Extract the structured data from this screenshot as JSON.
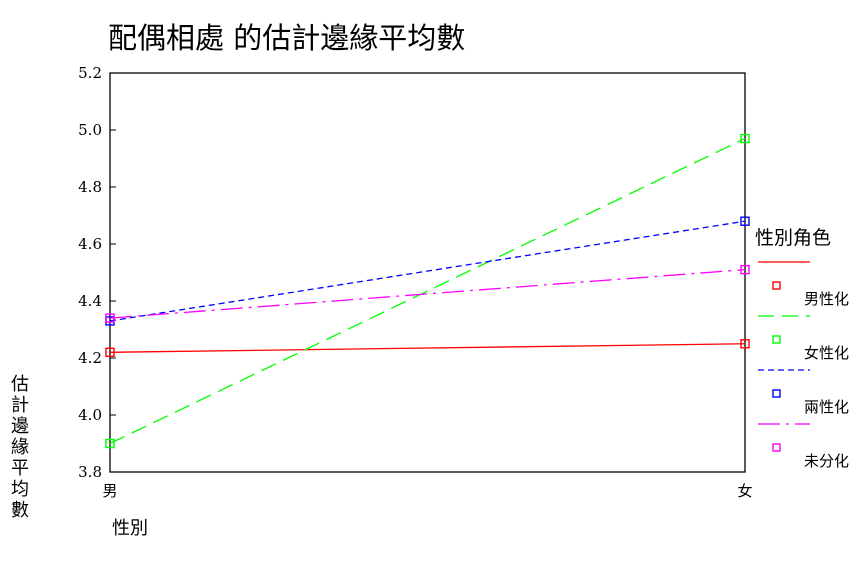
{
  "chart_data": {
    "type": "line",
    "title": "配偶相處 的估計邊緣平均數",
    "xlabel": "性別",
    "ylabel": "估計邊緣平均數",
    "categories": [
      "男",
      "女"
    ],
    "ylim": [
      3.8,
      5.2
    ],
    "yticks": [
      "3.8",
      "4.0",
      "4.2",
      "4.4",
      "4.6",
      "4.8",
      "5.0",
      "5.2"
    ],
    "grid": false,
    "legend_title": "性別角色",
    "legend_position": "right",
    "series": [
      {
        "name": "男性化",
        "values": [
          4.22,
          4.25
        ],
        "color": "#ff0000",
        "dash": "solid"
      },
      {
        "name": "女性化",
        "values": [
          3.9,
          4.97
        ],
        "color": "#00ff00",
        "dash": "long-dash"
      },
      {
        "name": "兩性化",
        "values": [
          4.33,
          4.68
        ],
        "color": "#0000ff",
        "dash": "short-dash"
      },
      {
        "name": "未分化",
        "values": [
          4.34,
          4.51
        ],
        "color": "#ff00ff",
        "dash": "dash-dot"
      }
    ]
  }
}
